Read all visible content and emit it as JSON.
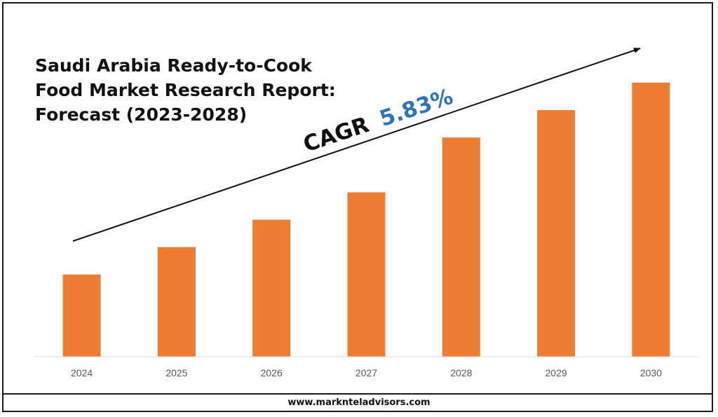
{
  "title": {
    "line1": "Saudi Arabia Ready-to-Cook",
    "line2": "Food Market Research Report:",
    "line3": "Forecast (2023-2028)"
  },
  "cagr": {
    "label": "CAGR",
    "value": "5.83%",
    "label_color": "#111111",
    "value_color": "#2e75b6"
  },
  "footer": {
    "url": "www.marknteladvisors.com"
  },
  "colors": {
    "bar": "#ed7d31",
    "axis": "#d9d9d9",
    "tick_text": "#595959",
    "arrow": "#111111"
  },
  "chart_data": {
    "type": "bar",
    "categories": [
      "2024",
      "2025",
      "2026",
      "2027",
      "2028",
      "2029",
      "2030"
    ],
    "values": [
      30,
      40,
      50,
      60,
      80,
      90,
      100
    ],
    "ylim": [
      0,
      100
    ],
    "value_scale": "relative (no y-axis printed)",
    "grid": false,
    "legend": "none",
    "annotation": "CAGR 5.83%",
    "trend_arrow": "rising, from lower-left to upper-right"
  }
}
